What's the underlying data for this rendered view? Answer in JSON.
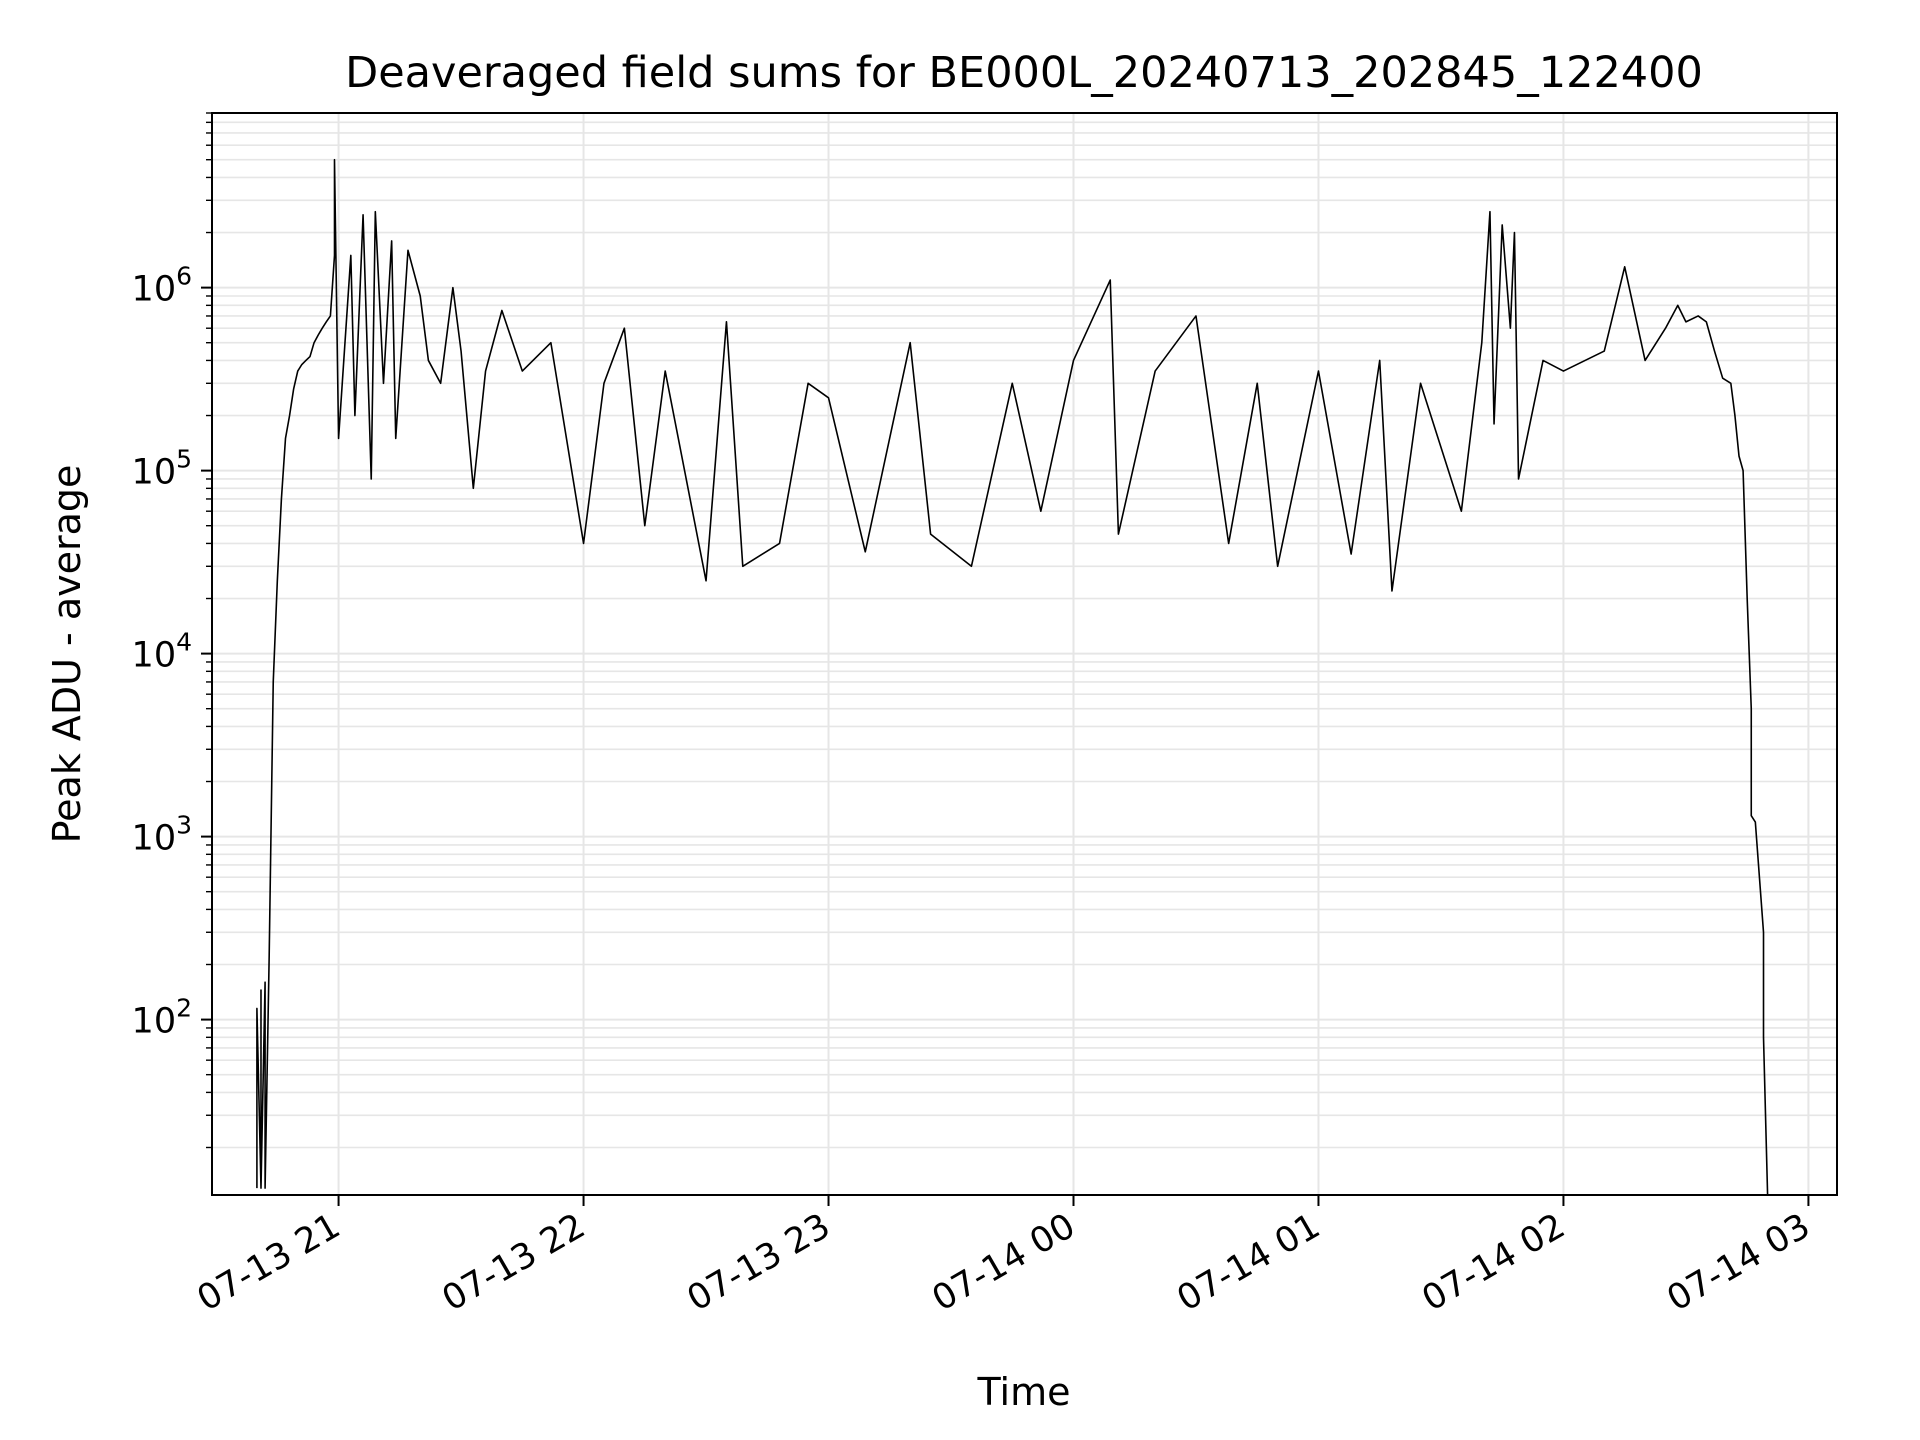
{
  "chart_data": {
    "type": "line",
    "title": "Deaveraged field sums for BE000L_20240713_202845_122400",
    "xlabel": "Time",
    "ylabel": "Peak ADU - average",
    "yscale": "log",
    "ylim": [
      11,
      9000000
    ],
    "xlim": [
      "2024-07-13 20:29",
      "2024-07-14 03:07"
    ],
    "grid": "major and minor",
    "x_ticks": [
      {
        "value": "2024-07-13 21:00",
        "label": "07-13 21"
      },
      {
        "value": "2024-07-13 22:00",
        "label": "07-13 22"
      },
      {
        "value": "2024-07-13 23:00",
        "label": "07-13 23"
      },
      {
        "value": "2024-07-14 00:00",
        "label": "07-14 00"
      },
      {
        "value": "2024-07-14 01:00",
        "label": "07-14 01"
      },
      {
        "value": "2024-07-14 02:00",
        "label": "07-14 02"
      },
      {
        "value": "2024-07-14 03:00",
        "label": "07-14 03"
      }
    ],
    "y_ticks": [
      {
        "value": 100,
        "base": "10",
        "exp": "2"
      },
      {
        "value": 1000,
        "base": "10",
        "exp": "3"
      },
      {
        "value": 10000,
        "base": "10",
        "exp": "4"
      },
      {
        "value": 100000,
        "base": "10",
        "exp": "5"
      },
      {
        "value": 1000000,
        "base": "10",
        "exp": "6"
      }
    ],
    "series": [
      {
        "color": "#000000",
        "points": [
          [
            "2024-07-13 20:40",
            12
          ],
          [
            "2024-07-13 20:40",
            115
          ],
          [
            "2024-07-13 20:41",
            12
          ],
          [
            "2024-07-13 20:41",
            145
          ],
          [
            "2024-07-13 20:41",
            12
          ],
          [
            "2024-07-13 20:42",
            160
          ],
          [
            "2024-07-13 20:42",
            12
          ],
          [
            "2024-07-13 20:43",
            220
          ],
          [
            "2024-07-13 20:44",
            7000
          ],
          [
            "2024-07-13 20:45",
            25000
          ],
          [
            "2024-07-13 20:46",
            70000
          ],
          [
            "2024-07-13 20:47",
            150000
          ],
          [
            "2024-07-13 20:48",
            200000
          ],
          [
            "2024-07-13 20:49",
            280000
          ],
          [
            "2024-07-13 20:50",
            350000
          ],
          [
            "2024-07-13 20:51",
            380000
          ],
          [
            "2024-07-13 20:52",
            400000
          ],
          [
            "2024-07-13 20:53",
            420000
          ],
          [
            "2024-07-13 20:54",
            500000
          ],
          [
            "2024-07-13 20:55",
            550000
          ],
          [
            "2024-07-13 20:56",
            600000
          ],
          [
            "2024-07-13 20:57",
            650000
          ],
          [
            "2024-07-13 20:58",
            700000
          ],
          [
            "2024-07-13 20:59",
            1500000
          ],
          [
            "2024-07-13 20:59",
            5000000
          ],
          [
            "2024-07-13 21:00",
            150000
          ],
          [
            "2024-07-13 21:03",
            1500000
          ],
          [
            "2024-07-13 21:04",
            200000
          ],
          [
            "2024-07-13 21:06",
            2500000
          ],
          [
            "2024-07-13 21:08",
            90000
          ],
          [
            "2024-07-13 21:09",
            2600000
          ],
          [
            "2024-07-13 21:11",
            300000
          ],
          [
            "2024-07-13 21:13",
            1800000
          ],
          [
            "2024-07-13 21:14",
            150000
          ],
          [
            "2024-07-13 21:17",
            1600000
          ],
          [
            "2024-07-13 21:20",
            900000
          ],
          [
            "2024-07-13 21:22",
            400000
          ],
          [
            "2024-07-13 21:25",
            300000
          ],
          [
            "2024-07-13 21:28",
            1000000
          ],
          [
            "2024-07-13 21:30",
            450000
          ],
          [
            "2024-07-13 21:33",
            80000
          ],
          [
            "2024-07-13 21:36",
            350000
          ],
          [
            "2024-07-13 21:40",
            750000
          ],
          [
            "2024-07-13 21:45",
            350000
          ],
          [
            "2024-07-13 21:52",
            500000
          ],
          [
            "2024-07-13 22:00",
            40000
          ],
          [
            "2024-07-13 22:05",
            300000
          ],
          [
            "2024-07-13 22:10",
            600000
          ],
          [
            "2024-07-13 22:15",
            50000
          ],
          [
            "2024-07-13 22:20",
            350000
          ],
          [
            "2024-07-13 22:30",
            25000
          ],
          [
            "2024-07-13 22:35",
            650000
          ],
          [
            "2024-07-13 22:39",
            30000
          ],
          [
            "2024-07-13 22:48",
            40000
          ],
          [
            "2024-07-13 22:55",
            300000
          ],
          [
            "2024-07-13 23:00",
            250000
          ],
          [
            "2024-07-13 23:09",
            36000
          ],
          [
            "2024-07-13 23:20",
            500000
          ],
          [
            "2024-07-13 23:25",
            45000
          ],
          [
            "2024-07-13 23:35",
            30000
          ],
          [
            "2024-07-13 23:45",
            300000
          ],
          [
            "2024-07-13 23:52",
            60000
          ],
          [
            "2024-07-14 00:00",
            400000
          ],
          [
            "2024-07-14 00:09",
            1100000
          ],
          [
            "2024-07-14 00:11",
            45000
          ],
          [
            "2024-07-14 00:20",
            350000
          ],
          [
            "2024-07-14 00:30",
            700000
          ],
          [
            "2024-07-14 00:38",
            40000
          ],
          [
            "2024-07-14 00:45",
            300000
          ],
          [
            "2024-07-14 00:50",
            30000
          ],
          [
            "2024-07-14 01:00",
            350000
          ],
          [
            "2024-07-14 01:08",
            35000
          ],
          [
            "2024-07-14 01:15",
            400000
          ],
          [
            "2024-07-14 01:18",
            22000
          ],
          [
            "2024-07-14 01:25",
            300000
          ],
          [
            "2024-07-14 01:35",
            60000
          ],
          [
            "2024-07-14 01:40",
            500000
          ],
          [
            "2024-07-14 01:42",
            2600000
          ],
          [
            "2024-07-14 01:43",
            180000
          ],
          [
            "2024-07-14 01:45",
            2200000
          ],
          [
            "2024-07-14 01:47",
            600000
          ],
          [
            "2024-07-14 01:48",
            2000000
          ],
          [
            "2024-07-14 01:49",
            90000
          ],
          [
            "2024-07-14 01:55",
            400000
          ],
          [
            "2024-07-14 02:00",
            350000
          ],
          [
            "2024-07-14 02:10",
            450000
          ],
          [
            "2024-07-14 02:15",
            1300000
          ],
          [
            "2024-07-14 02:20",
            400000
          ],
          [
            "2024-07-14 02:25",
            600000
          ],
          [
            "2024-07-14 02:28",
            800000
          ],
          [
            "2024-07-14 02:30",
            650000
          ],
          [
            "2024-07-14 02:33",
            700000
          ],
          [
            "2024-07-14 02:35",
            650000
          ],
          [
            "2024-07-14 02:37",
            450000
          ],
          [
            "2024-07-14 02:39",
            320000
          ],
          [
            "2024-07-14 02:41",
            300000
          ],
          [
            "2024-07-14 02:42",
            200000
          ],
          [
            "2024-07-14 02:43",
            120000
          ],
          [
            "2024-07-14 02:44",
            100000
          ],
          [
            "2024-07-14 02:45",
            20000
          ],
          [
            "2024-07-14 02:46",
            5000
          ],
          [
            "2024-07-14 02:46",
            1300
          ],
          [
            "2024-07-14 02:47",
            1200
          ],
          [
            "2024-07-14 02:48",
            600
          ],
          [
            "2024-07-14 02:49",
            300
          ],
          [
            "2024-07-14 02:49",
            80
          ],
          [
            "2024-07-14 02:50",
            11
          ]
        ]
      }
    ]
  }
}
